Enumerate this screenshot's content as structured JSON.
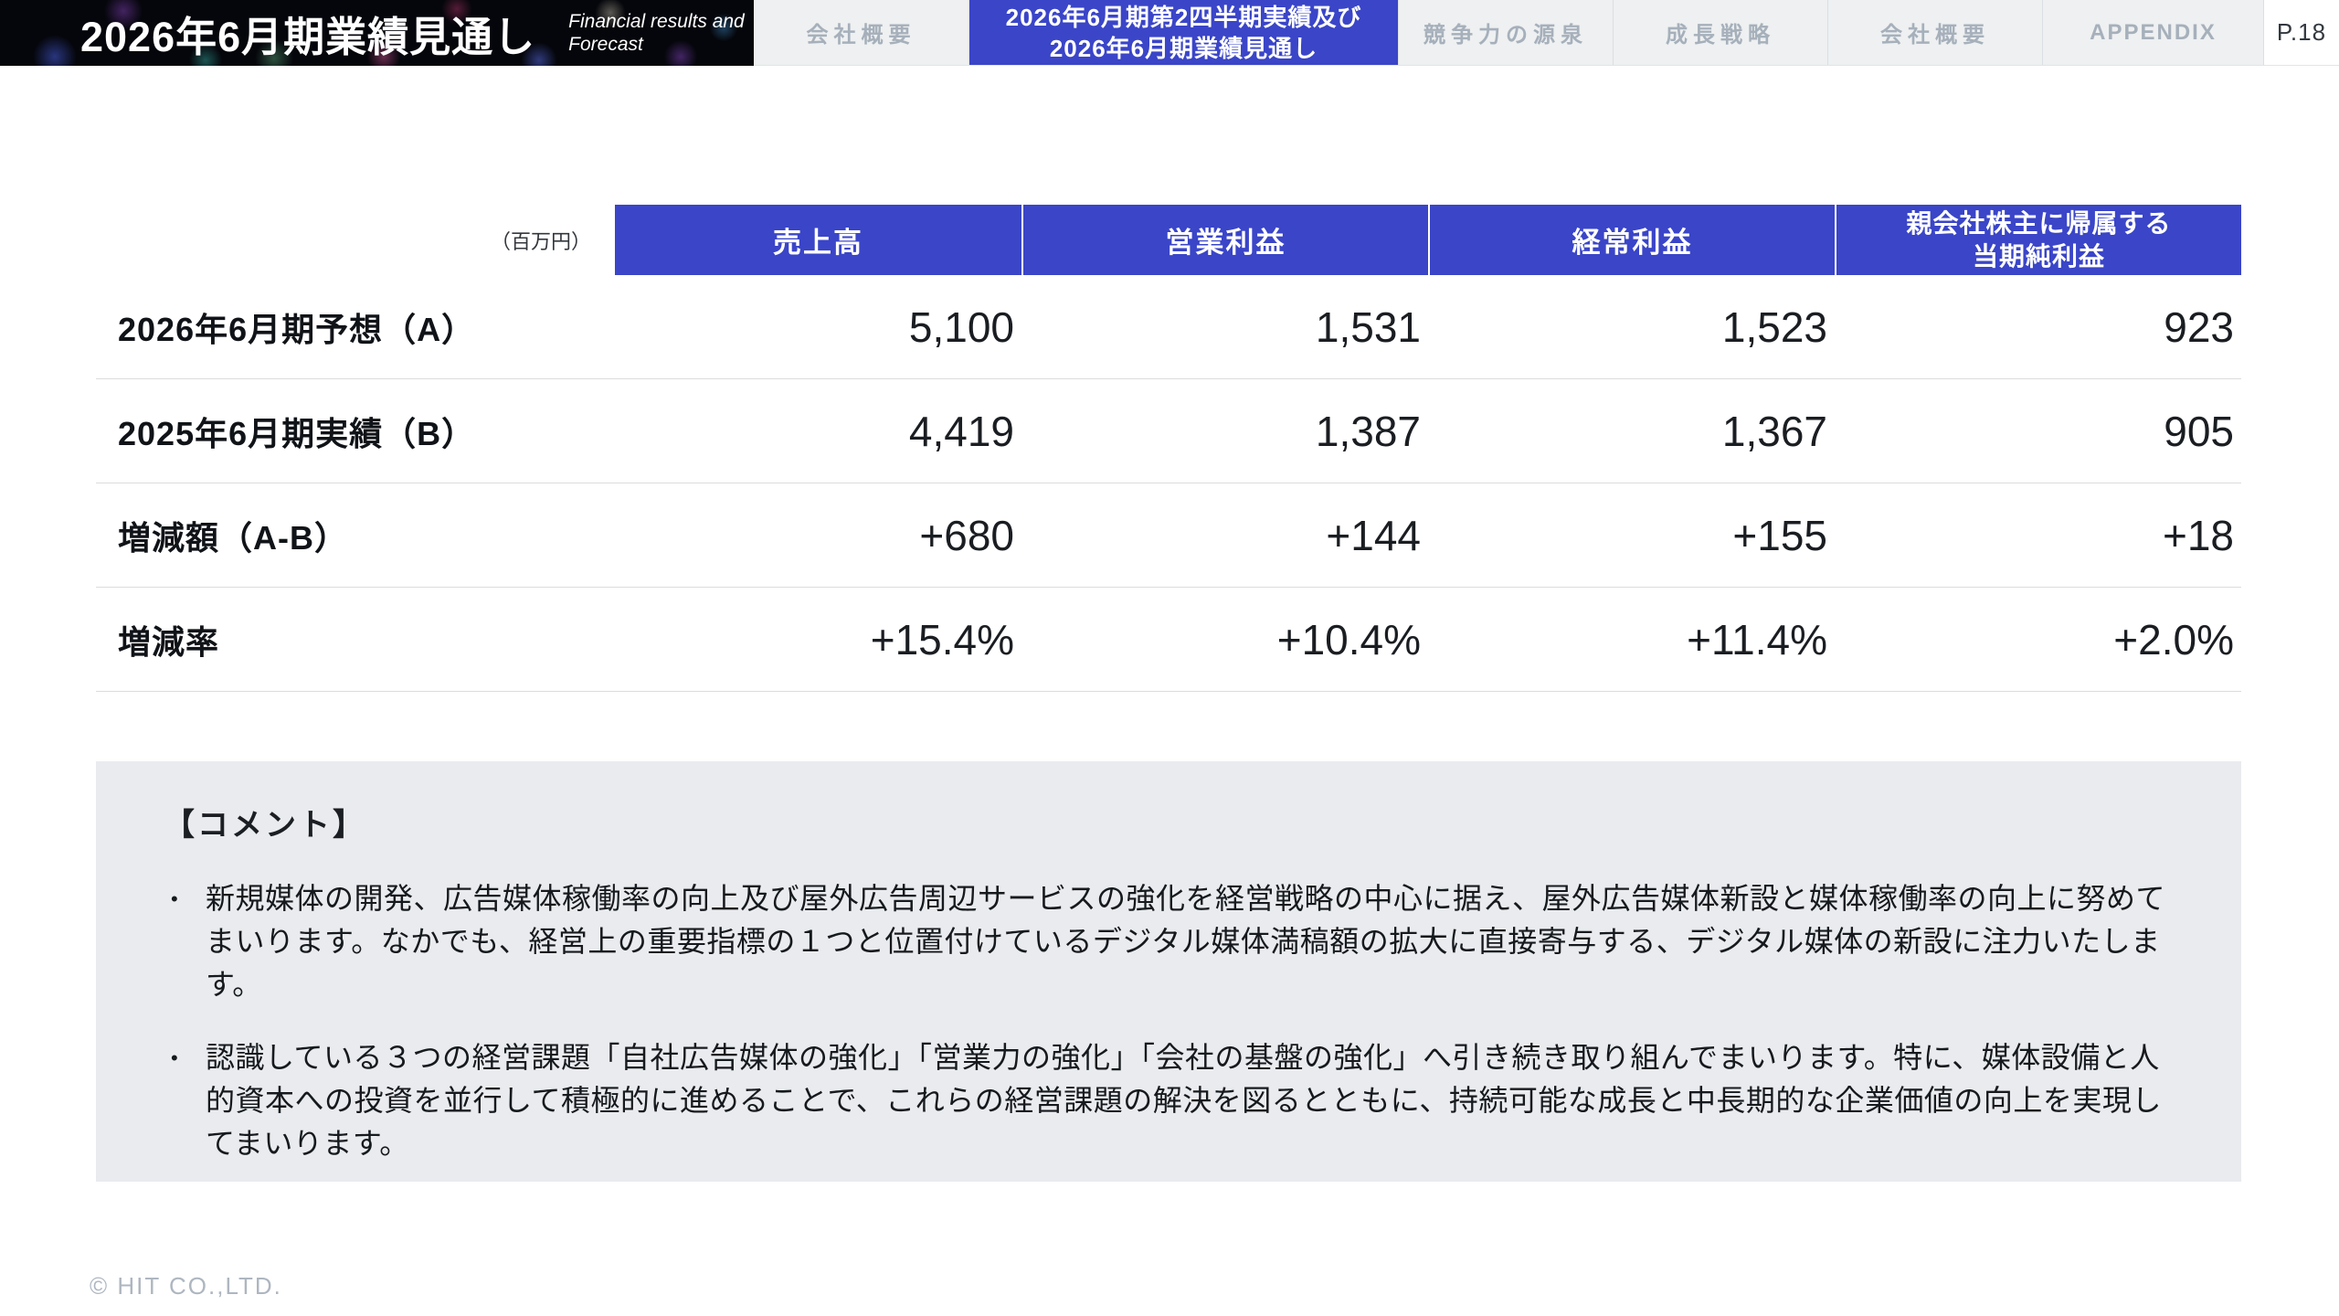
{
  "page": {
    "page_number": "P.18",
    "footer": "© HIT CO.,LTD."
  },
  "header": {
    "title": "2026年6月期業績見通し",
    "subtitle": "Financial results and\nForecast",
    "tabs": [
      {
        "label": "会社概要",
        "active": false
      },
      {
        "label": "2026年6月期第2四半期実績及び\n2026年6月期業績見通し",
        "active": true
      },
      {
        "label": "競争力の源泉",
        "active": false
      },
      {
        "label": "成長戦略",
        "active": false
      },
      {
        "label": "会社概要",
        "active": false
      },
      {
        "label": "APPENDIX",
        "active": false
      }
    ]
  },
  "table": {
    "unit_label": "（百万円）",
    "columns": [
      "売上高",
      "営業利益",
      "経常利益",
      "親会社株主に帰属する\n当期純利益"
    ],
    "rows": [
      {
        "label": "2026年6月期予想（A）",
        "values": [
          "5,100",
          "1,531",
          "1,523",
          "923"
        ]
      },
      {
        "label": "2025年6月期実績（B）",
        "values": [
          "4,419",
          "1,387",
          "1,367",
          "905"
        ]
      },
      {
        "label": "増減額（A-B）",
        "values": [
          "+680",
          "+144",
          "+155",
          "+18"
        ]
      },
      {
        "label": "増減率",
        "values": [
          "+15.4%",
          "+10.4%",
          "+11.4%",
          "+2.0%"
        ]
      }
    ]
  },
  "comments": {
    "heading": "【コメント】",
    "bullet_glyph": "•",
    "bullets": [
      "新規媒体の開発、広告媒体稼働率の向上及び屋外広告周辺サービスの強化を経営戦略の中心に据え、屋外広告媒体新設と媒体稼働率の向上に努めてまいります。なかでも、経営上の重要指標の１つと位置付けているデジタル媒体満稿額の拡大に直接寄与する、デジタル媒体の新設に注力いたします。",
      "認識している３つの経営課題「自社広告媒体の強化」「営業力の強化」「会社の基盤の強化」へ引き続き取り組んでまいります。特に、媒体設備と人的資本への投資を並行して積極的に進めることで、これらの経営課題の解決を図るとともに、持続可能な成長と中長期的な企業価値の向上を実現してまいります。"
    ]
  },
  "colors": {
    "accent_blue": "#3A45C8",
    "comment_box_bg": "#E9EBEE",
    "tabbar_bg": "#EEF0F1"
  }
}
